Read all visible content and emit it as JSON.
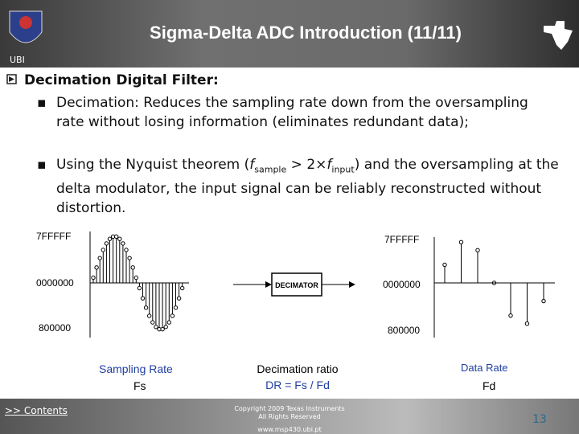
{
  "header": {
    "title": "Sigma-Delta ADC Introduction (11/11)",
    "logo_label": "UBI"
  },
  "body": {
    "heading": "Decimation Digital Filter:",
    "bullet_1": "Decimation: Reduces the sampling rate down from the oversampling rate without losing information (eliminates redundant data);",
    "bullet_2": {
      "part_1": "Using the Nyquist theorem (",
      "f_1": "f",
      "sub_1": "sample",
      "part_2": " > 2×",
      "f_2": "f",
      "sub_2": "input",
      "part_3": ")  and the oversampling at the delta modulator, the input signal can be reliably reconstructed without distortion."
    }
  },
  "figure": {
    "left": {
      "top": "7FFFFF",
      "zero": "0000000",
      "bottom": "800000",
      "caption": "Sampling Rate",
      "symbol": "Fs"
    },
    "middle": {
      "box": "DECIMATOR",
      "caption": "Decimation ratio",
      "formula": "DR = Fs / Fd"
    },
    "right": {
      "top": "7FFFFF",
      "zero": "0000000",
      "bottom": "800000",
      "caption": "Data Rate",
      "symbol": "Fd"
    }
  },
  "footer": {
    "link": ">> Contents",
    "copyright_1": "Copyright  2009 Texas Instruments",
    "copyright_2": "All Rights Reserved",
    "url": "www.msp430.ubi.pt",
    "page": "13"
  }
}
